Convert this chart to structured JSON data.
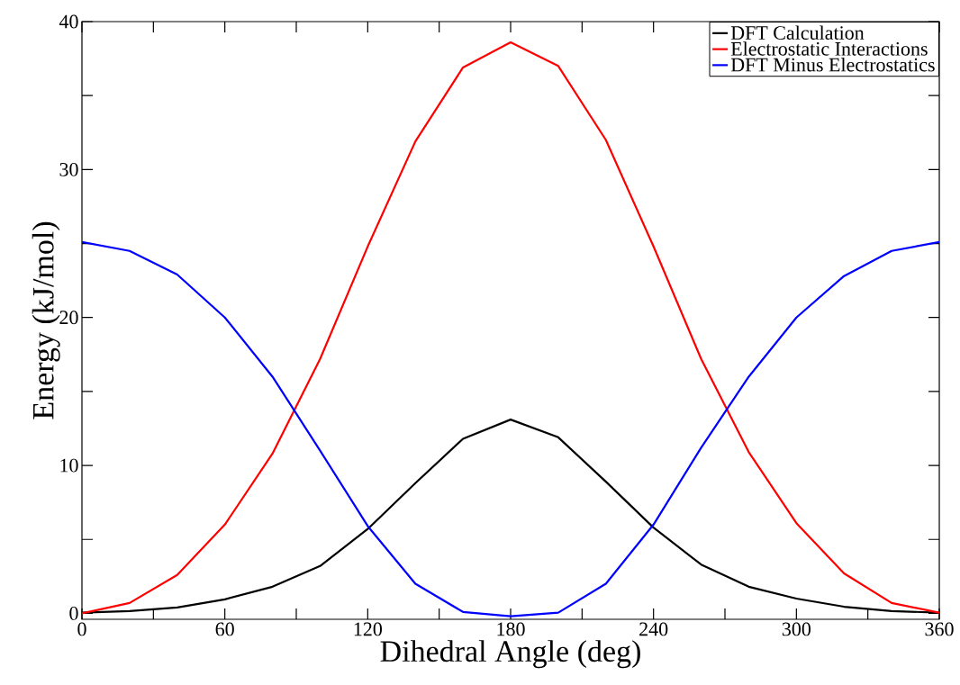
{
  "chart_data": {
    "type": "line",
    "xlabel": "Dihedral Angle (deg)",
    "ylabel": "Energy (kJ/mol)",
    "x": [
      0,
      20,
      40,
      60,
      80,
      100,
      120,
      140,
      160,
      180,
      200,
      220,
      240,
      260,
      280,
      300,
      320,
      340,
      360
    ],
    "series": [
      {
        "name": "DFT Calculation",
        "color": "#000000",
        "values": [
          0.05,
          0.15,
          0.4,
          0.95,
          1.8,
          3.2,
          5.7,
          8.8,
          11.8,
          13.1,
          11.9,
          8.9,
          5.8,
          3.3,
          1.8,
          1.0,
          0.45,
          0.15,
          0.05
        ]
      },
      {
        "name": "Electrostatic Interactions",
        "color": "#ff0000",
        "values": [
          0.0,
          0.7,
          2.6,
          6.0,
          10.8,
          17.2,
          24.8,
          31.9,
          36.9,
          38.6,
          37.0,
          32.0,
          24.8,
          17.2,
          10.9,
          6.1,
          2.7,
          0.7,
          0.05
        ]
      },
      {
        "name": "DFT Minus Electrostatics",
        "color": "#0000ff",
        "values": [
          25.1,
          24.5,
          22.9,
          20.0,
          16.0,
          11.0,
          5.9,
          2.0,
          0.1,
          -0.2,
          0.05,
          2.0,
          6.0,
          11.2,
          16.0,
          20.0,
          22.8,
          24.5,
          25.1
        ]
      }
    ],
    "xlim": [
      0,
      360
    ],
    "ylim": [
      -0.4,
      40
    ],
    "xticks": [
      0,
      {
        "value": 30,
        "label": null
      },
      60,
      {
        "value": 90,
        "label": null
      },
      120,
      {
        "value": 150,
        "label": null
      },
      180,
      {
        "value": 210,
        "label": null
      },
      240,
      {
        "value": 270,
        "label": null
      },
      300,
      {
        "value": 330,
        "label": null
      },
      360
    ],
    "yticks": [
      0,
      {
        "value": 5,
        "label": null
      },
      10,
      {
        "value": 15,
        "label": null
      },
      20,
      {
        "value": 25,
        "label": null
      },
      30,
      {
        "value": 35,
        "label": null
      },
      40
    ],
    "legend": "top right",
    "grid": false,
    "marker": "none",
    "line_style": "solid"
  }
}
